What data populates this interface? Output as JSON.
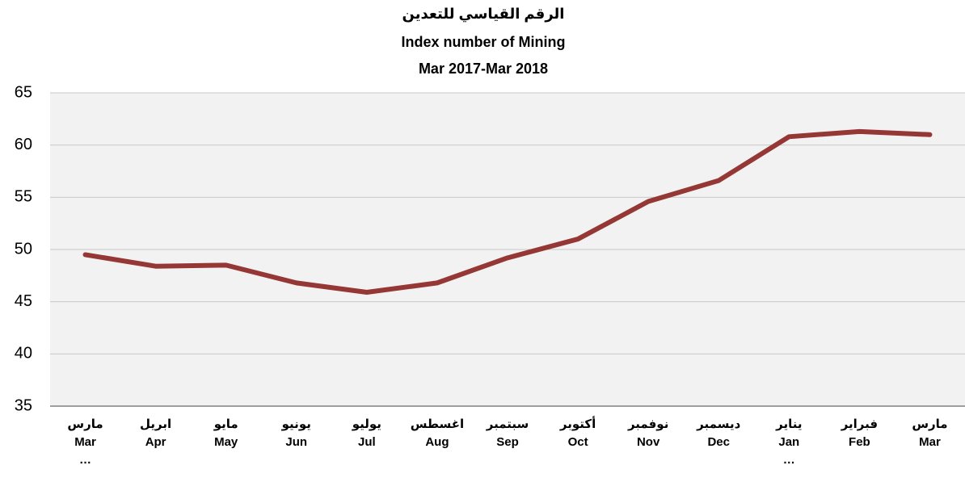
{
  "chart_data": {
    "type": "line",
    "title": [
      "الرقم القياسي للتعدين",
      "Index number of Mining",
      "Mar 2017-Mar 2018"
    ],
    "categories": [
      [
        "مارس",
        "Mar",
        "…"
      ],
      [
        "ابريل",
        "Apr"
      ],
      [
        "مايو",
        "May"
      ],
      [
        "يونيو",
        "Jun"
      ],
      [
        "يوليو",
        "Jul"
      ],
      [
        "اغسطس",
        "Aug"
      ],
      [
        "سبتمبر",
        "Sep"
      ],
      [
        "أكتوبر",
        "Oct"
      ],
      [
        "نوفمبر",
        "Nov"
      ],
      [
        "ديسمبر",
        "Dec"
      ],
      [
        "يناير",
        "Jan",
        "…"
      ],
      [
        "فبراير",
        "Feb"
      ],
      [
        "مارس",
        "Mar"
      ]
    ],
    "series": [
      {
        "color": "#953735",
        "values": [
          49.5,
          48.4,
          48.5,
          46.8,
          45.9,
          46.8,
          49.2,
          51.0,
          54.6,
          56.6,
          60.8,
          61.3,
          61.0
        ]
      }
    ],
    "ylim": [
      35,
      65
    ],
    "yticks": [
      35,
      40,
      45,
      50,
      55,
      60,
      65
    ],
    "grid": true
  }
}
